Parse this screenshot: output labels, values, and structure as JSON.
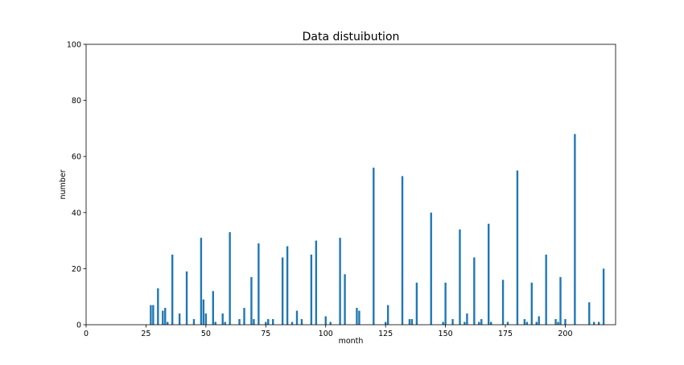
{
  "chart_data": {
    "type": "bar",
    "title": "Data distuibution",
    "xlabel": "month",
    "ylabel": "number",
    "xlim": [
      0,
      221
    ],
    "ylim": [
      0,
      100
    ],
    "xticks": [
      0,
      25,
      50,
      75,
      100,
      125,
      150,
      175,
      200
    ],
    "yticks": [
      0,
      20,
      40,
      60,
      80,
      100
    ],
    "grid": false,
    "bar_color": "#1f77b4",
    "series": [
      {
        "x": [
          27,
          28,
          30,
          32,
          33,
          34,
          36,
          39,
          42,
          45,
          48,
          49,
          50,
          53,
          54,
          57,
          58,
          60,
          64,
          66,
          69,
          70,
          72,
          75,
          76,
          78,
          82,
          84,
          86,
          88,
          90,
          94,
          96,
          100,
          102,
          106,
          108,
          113,
          114,
          120,
          125,
          126,
          132,
          135,
          136,
          138,
          144,
          149,
          150,
          153,
          156,
          158,
          159,
          162,
          164,
          165,
          168,
          169,
          174,
          176,
          180,
          183,
          184,
          186,
          188,
          189,
          192,
          196,
          197,
          198,
          200,
          204,
          210,
          212,
          214,
          216
        ],
        "values": [
          7,
          7,
          13,
          5,
          6,
          1,
          25,
          4,
          19,
          2,
          31,
          9,
          4,
          12,
          1,
          4,
          1,
          33,
          2,
          6,
          17,
          2,
          29,
          1,
          2,
          2,
          24,
          28,
          1,
          5,
          2,
          25,
          30,
          3,
          1,
          31,
          18,
          6,
          5,
          56,
          1,
          7,
          53,
          2,
          2,
          15,
          40,
          1,
          15,
          2,
          34,
          1,
          4,
          24,
          1,
          2,
          36,
          1,
          16,
          1,
          55,
          2,
          1,
          15,
          1,
          3,
          25,
          2,
          1,
          17,
          2,
          68,
          8,
          1,
          1,
          20
        ]
      }
    ]
  }
}
